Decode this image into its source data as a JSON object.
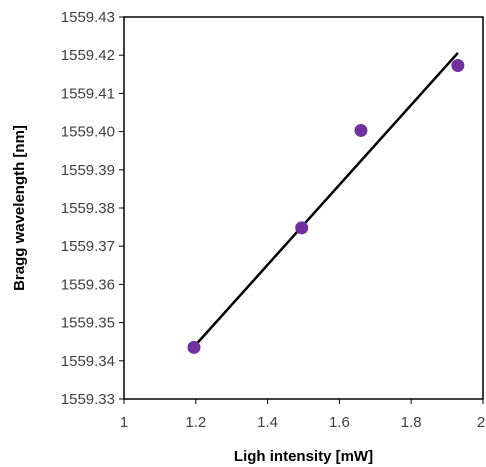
{
  "chart_data": {
    "type": "scatter",
    "title": "",
    "xlabel": "Ligh intensity [mW]",
    "ylabel": "Bragg wavelength [nm]",
    "xlim": [
      1,
      2
    ],
    "ylim": [
      1559.33,
      1559.43
    ],
    "x_ticks": [
      1,
      1.2,
      1.4,
      1.6,
      1.8,
      2
    ],
    "x_tick_labels": [
      "1",
      "1.2",
      "1.4",
      "1.6",
      "1.8",
      "2"
    ],
    "y_ticks": [
      1559.33,
      1559.34,
      1559.35,
      1559.36,
      1559.37,
      1559.38,
      1559.39,
      1559.4,
      1559.41,
      1559.42,
      1559.43
    ],
    "y_tick_labels": [
      "1559.33",
      "1559.34",
      "1559.35",
      "1559.36",
      "1559.37",
      "1559.38",
      "1559.39",
      "1559.40",
      "1559.41",
      "1559.42",
      "1559.43"
    ],
    "grid": false,
    "legend": "none",
    "series": [
      {
        "type": "scatter",
        "x": [
          1.195,
          1.495,
          1.66,
          1.93
        ],
        "y": [
          1559.3435,
          1559.3748,
          1559.4003,
          1559.4173
        ],
        "color": "#7030a0"
      }
    ],
    "fit_line": {
      "x": [
        1.2,
        1.93
      ],
      "y": [
        1559.3442,
        1559.4206
      ],
      "color": "#000000"
    }
  }
}
